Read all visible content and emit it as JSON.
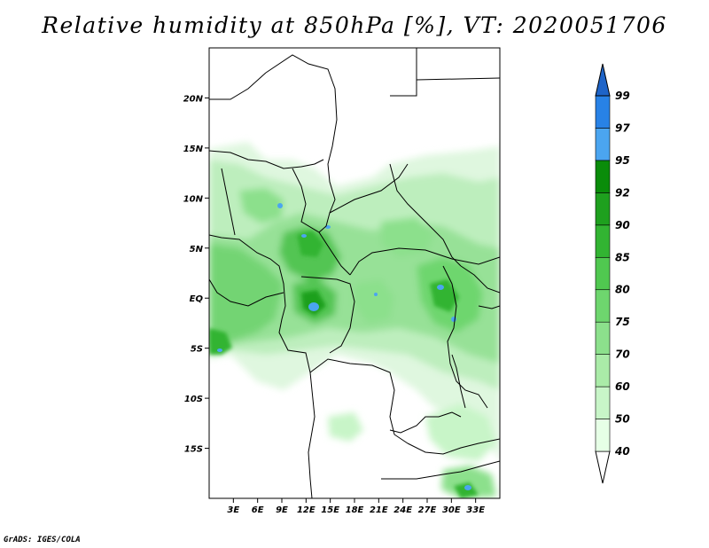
{
  "title": "Relative humidity at 850hPa [%], VT: 2020051706",
  "credit": "GrADS: IGES/COLA",
  "map": {
    "lon_range": [
      0,
      36
    ],
    "lat_range": [
      -20,
      25
    ],
    "lat_labels": [
      {
        "lat": 20,
        "text": "20N"
      },
      {
        "lat": 15,
        "text": "15N"
      },
      {
        "lat": 10,
        "text": "10N"
      },
      {
        "lat": 5,
        "text": "5N"
      },
      {
        "lat": 0,
        "text": "EQ"
      },
      {
        "lat": -5,
        "text": "5S"
      },
      {
        "lat": -10,
        "text": "10S"
      },
      {
        "lat": -15,
        "text": "15S"
      }
    ],
    "lon_labels": [
      {
        "lon": 3,
        "text": "3E"
      },
      {
        "lon": 6,
        "text": "6E"
      },
      {
        "lon": 9,
        "text": "9E"
      },
      {
        "lon": 12,
        "text": "12E"
      },
      {
        "lon": 15,
        "text": "15E"
      },
      {
        "lon": 18,
        "text": "18E"
      },
      {
        "lon": 21,
        "text": "21E"
      },
      {
        "lon": 24,
        "text": "24E"
      },
      {
        "lon": 27,
        "text": "27E"
      },
      {
        "lon": 30,
        "text": "30E"
      },
      {
        "lon": 33,
        "text": "33E"
      }
    ]
  },
  "colorbar": {
    "levels": [
      "40",
      "50",
      "60",
      "70",
      "75",
      "80",
      "85",
      "90",
      "92",
      "95",
      "97",
      "99"
    ],
    "colors": [
      "#ffffff",
      "#e6ffe6",
      "#c8f5c8",
      "#aaeba8",
      "#8ce08c",
      "#6ed66e",
      "#50c850",
      "#32b432",
      "#1ea01e",
      "#0a8c0a",
      "#4ba5f0",
      "#2882e6",
      "#1e64c8"
    ]
  }
}
